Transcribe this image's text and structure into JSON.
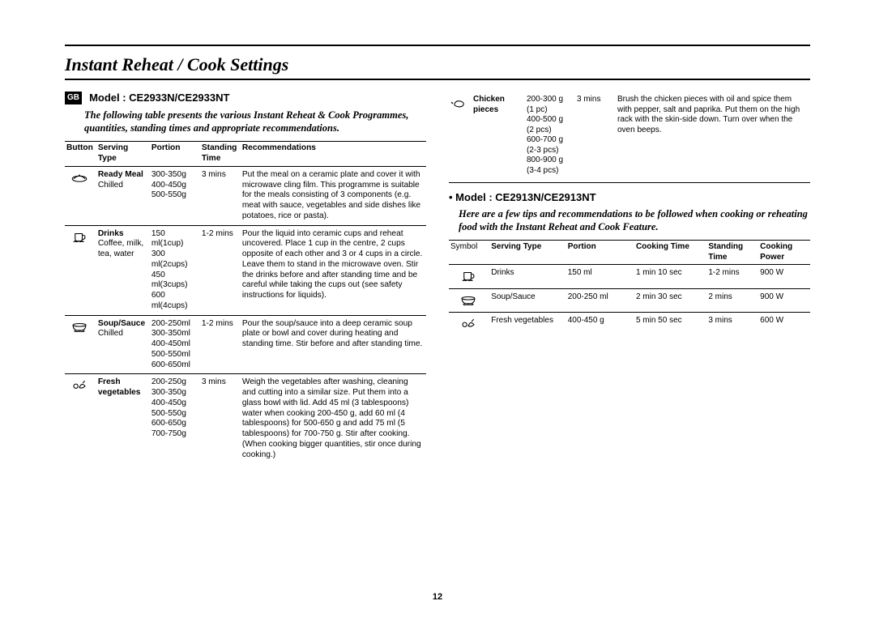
{
  "page_title": "Instant Reheat / Cook Settings",
  "gb_label": "GB",
  "page_number": "12",
  "left": {
    "model_header": "Model : CE2933N/CE2933NT",
    "intro": "The following table presents the various Instant Reheat & Cook Programmes, quantities, standing times and appropriate recommendations.",
    "headers": {
      "button": "Button",
      "serving": "Serving Type",
      "portion": "Portion",
      "standing": "Standing Time",
      "rec": "Recommendations"
    },
    "rows": [
      {
        "icon": "ready-meal",
        "serving_bold": "Ready Meal",
        "serving_sub": "Chilled",
        "portion": "300-350g\n400-450g\n500-550g",
        "standing": "3 mins",
        "rec": "Put the meal on a ceramic plate and cover it with microwave cling film. This programme is suitable for the meals consisting of 3 components (e.g. meat with sauce, vegetables and side dishes like potatoes, rice or pasta)."
      },
      {
        "icon": "drinks",
        "serving_bold": "Drinks",
        "serving_sub": "Coffee, milk, tea, water",
        "portion": "150 ml(1cup)\n300 ml(2cups)\n450 ml(3cups)\n600 ml(4cups)",
        "standing": "1-2 mins",
        "rec": "Pour the liquid into ceramic cups and reheat uncovered. Place 1 cup in the centre, 2 cups opposite of each other and 3 or 4 cups in a circle. Leave them to stand in the microwave oven. Stir the drinks before and after standing time and be careful while taking the cups out (see safety instructions for liquids)."
      },
      {
        "icon": "soup",
        "serving_bold": "Soup/Sauce",
        "serving_sub": "Chilled",
        "portion": "200-250ml\n300-350ml\n400-450ml\n500-550ml\n600-650ml",
        "standing": "1-2 mins",
        "rec": "Pour the soup/sauce into a deep ceramic soup plate or bowl and cover during heating and standing time. Stir before and after standing time."
      },
      {
        "icon": "veg",
        "serving_bold": "Fresh vegetables",
        "serving_sub": "",
        "portion": "200-250g\n300-350g\n400-450g\n500-550g\n600-650g\n700-750g",
        "standing": "3 mins",
        "rec": "Weigh the vegetables after washing, cleaning and cutting into a similar size. Put them into a glass bowl with lid. Add 45 ml (3 tablespoons) water when cooking 200-450 g, add 60 ml (4 tablespoons) for 500-650 g and add 75 ml (5 tablespoons) for 700-750 g. Stir after cooking. (When cooking bigger quantities, stir once during cooking.)"
      }
    ]
  },
  "right_top": {
    "icon": "chicken",
    "serving_bold": "Chicken pieces",
    "serving_sub": "",
    "portion": "200-300 g (1 pc)\n400-500 g (2 pcs)\n600-700 g (2-3 pcs)\n800-900 g (3-4 pcs)",
    "standing": "3 mins",
    "rec": "Brush the chicken pieces with oil and spice them with pepper, salt and paprika. Put them on the high rack with the skin-side down. Turn over when the oven beeps."
  },
  "right_model": {
    "header": "Model : CE2913N/CE2913NT",
    "intro": "Here are a few tips and recommendations to be followed when cooking or reheating food with the Instant Reheat and Cook Feature.",
    "headers": {
      "symbol": "Symbol",
      "serving": "Serving Type",
      "portion": "Portion",
      "cooking_time": "Cooking Time",
      "standing": "Standing Time",
      "power": "Cooking Power"
    },
    "rows": [
      {
        "icon": "drinks",
        "serving": "Drinks",
        "portion": "150 ml",
        "ct": "1 min 10 sec",
        "st": "1-2 mins",
        "pw": "900 W"
      },
      {
        "icon": "soup",
        "serving": "Soup/Sauce",
        "portion": "200-250 ml",
        "ct": "2 min 30 sec",
        "st": "2 mins",
        "pw": "900 W"
      },
      {
        "icon": "veg",
        "serving": "Fresh vegetables",
        "portion": "400-450 g",
        "ct": "5 min 50 sec",
        "st": "3 mins",
        "pw": "600 W"
      }
    ]
  }
}
